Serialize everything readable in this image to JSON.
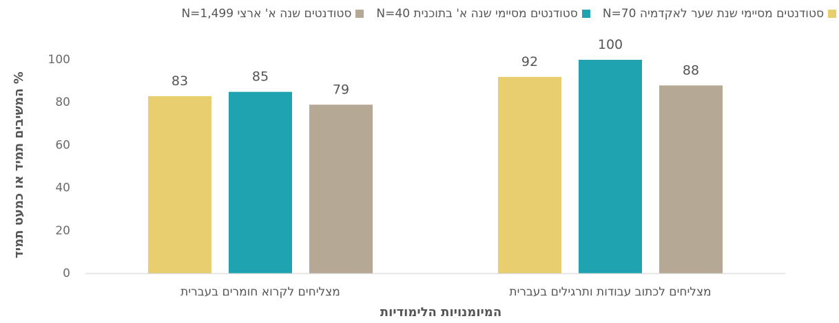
{
  "chart_data": {
    "type": "bar",
    "categories": [
      "מצליחים לכתוב עבודות ותרגילים בעברית",
      "מצליחים לקרוא חומרים בעברית"
    ],
    "series": [
      {
        "name": "סטודנטים מסיימי שנת שער לאקדמיה N=70",
        "color": "#E8CE6E",
        "values": [
          92,
          83
        ]
      },
      {
        "name": "סטודנטים מסיימי שנה א' בתוכנית N=40",
        "color": "#1FA3B1",
        "values": [
          100,
          85
        ]
      },
      {
        "name": "סטודנטים שנה א' ארצי N=1,499",
        "color": "#B5A995",
        "values": [
          88,
          79
        ]
      }
    ],
    "ylabel": "% המשיבים תמיד או כמעט תמיד",
    "xlabel": "המיומנויות הלימודיות",
    "ylim": [
      0,
      100
    ],
    "yticks": [
      0,
      20,
      40,
      60,
      80,
      100
    ],
    "grid": false,
    "legend": "top",
    "title": ""
  }
}
